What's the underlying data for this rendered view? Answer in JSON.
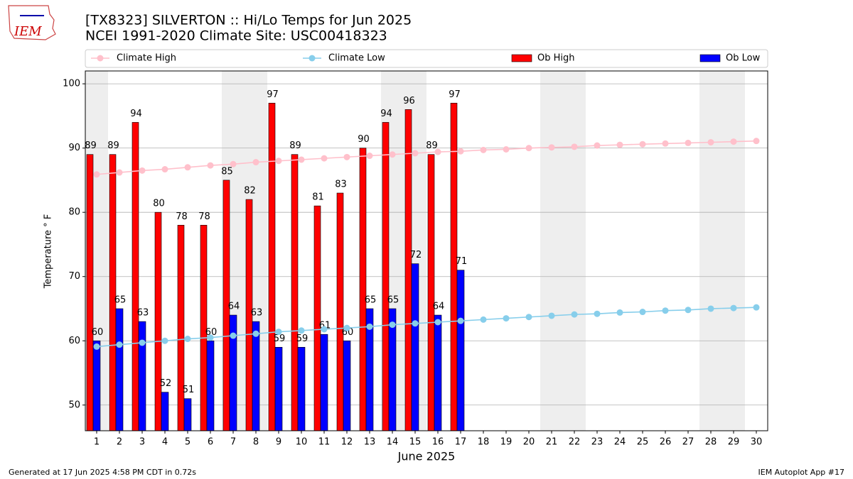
{
  "chart_data": {
    "type": "bar",
    "logo": "IEM",
    "title": "[TX8323] SILVERTON :: Hi/Lo Temps for Jun 2025",
    "subtitle": "NCEI 1991-2020 Climate Site: USC00418323",
    "ylabel": "Temperature ° F",
    "xlabel": "June 2025",
    "footer_left": "Generated at 17 Jun 2025 4:58 PM CDT in 0.72s",
    "footer_right": "IEM Autoplot App #17",
    "x": [
      1,
      2,
      3,
      4,
      5,
      6,
      7,
      8,
      9,
      10,
      11,
      12,
      13,
      14,
      15,
      16,
      17,
      18,
      19,
      20,
      21,
      22,
      23,
      24,
      25,
      26,
      27,
      28,
      29,
      30
    ],
    "xlim": [
      0.5,
      30.5
    ],
    "xticks": [
      1,
      2,
      3,
      4,
      5,
      6,
      7,
      8,
      9,
      10,
      11,
      12,
      13,
      14,
      15,
      16,
      17,
      18,
      19,
      20,
      21,
      22,
      23,
      24,
      25,
      26,
      27,
      28,
      29,
      30
    ],
    "ylim": [
      46,
      102
    ],
    "yticks": [
      50,
      60,
      70,
      80,
      90,
      100
    ],
    "grid": true,
    "shaded_days": [
      1,
      7,
      8,
      14,
      15,
      21,
      22,
      28,
      29
    ],
    "shade_color": "#eeeeee",
    "series": [
      {
        "name": "Climate High",
        "type": "line",
        "color": "#ffc0cb",
        "values": [
          85.9,
          86.2,
          86.5,
          86.7,
          87.0,
          87.3,
          87.5,
          87.8,
          88.0,
          88.2,
          88.4,
          88.6,
          88.8,
          89.0,
          89.2,
          89.4,
          89.5,
          89.7,
          89.8,
          90.0,
          90.1,
          90.2,
          90.4,
          90.5,
          90.6,
          90.7,
          90.8,
          90.9,
          91.0,
          91.1
        ]
      },
      {
        "name": "Climate Low",
        "type": "line",
        "color": "#87ceeb",
        "values": [
          59.1,
          59.4,
          59.7,
          60.0,
          60.3,
          60.5,
          60.8,
          61.1,
          61.4,
          61.6,
          61.8,
          62.0,
          62.2,
          62.5,
          62.7,
          62.9,
          63.1,
          63.3,
          63.5,
          63.7,
          63.9,
          64.1,
          64.2,
          64.4,
          64.5,
          64.7,
          64.8,
          65.0,
          65.1,
          65.2
        ]
      },
      {
        "name": "Ob High",
        "type": "bar",
        "color": "#ff0000",
        "values": [
          89,
          89,
          94,
          80,
          78,
          78,
          85,
          82,
          97,
          89,
          81,
          83,
          90,
          94,
          96,
          89,
          97,
          null,
          null,
          null,
          null,
          null,
          null,
          null,
          null,
          null,
          null,
          null,
          null,
          null
        ]
      },
      {
        "name": "Ob Low",
        "type": "bar",
        "color": "#0000ff",
        "values": [
          60,
          65,
          63,
          52,
          51,
          60,
          64,
          63,
          59,
          59,
          61,
          60,
          65,
          65,
          72,
          64,
          71,
          null,
          null,
          null,
          null,
          null,
          null,
          null,
          null,
          null,
          null,
          null,
          null,
          null
        ]
      }
    ]
  }
}
